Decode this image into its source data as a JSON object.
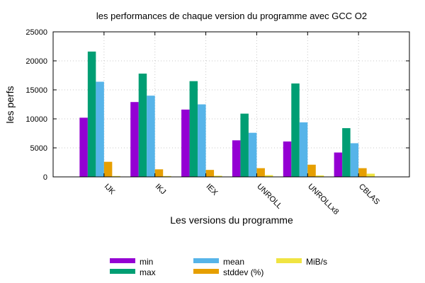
{
  "chart_data": {
    "type": "bar",
    "title": "les performances de chaque version du programme avec GCC O2",
    "xlabel": "Les versions du programme",
    "ylabel": "les perfs",
    "ylim": [
      0,
      25000
    ],
    "yticks": [
      0,
      5000,
      10000,
      15000,
      20000,
      25000
    ],
    "grid": true,
    "legend_position": "bottom",
    "categories": [
      "IJK",
      "IKJ",
      "IEX",
      "UNROLL",
      "UNROLLx8",
      "CBLAS"
    ],
    "series": [
      {
        "name": "min",
        "color": "#9400d3",
        "values": [
          10200,
          12900,
          11600,
          6300,
          6100,
          4200
        ]
      },
      {
        "name": "max",
        "color": "#009e73",
        "values": [
          21600,
          17800,
          16500,
          10900,
          16100,
          8400
        ]
      },
      {
        "name": "mean",
        "color": "#56b4e9",
        "values": [
          16400,
          14000,
          12500,
          7600,
          9400,
          5800
        ]
      },
      {
        "name": "stddev (%)",
        "color": "#e69f00",
        "values": [
          2600,
          1300,
          1200,
          1500,
          2100,
          1500
        ]
      },
      {
        "name": "MiB/s",
        "color": "#f0e442",
        "values": [
          150,
          150,
          200,
          300,
          250,
          550
        ]
      }
    ]
  }
}
